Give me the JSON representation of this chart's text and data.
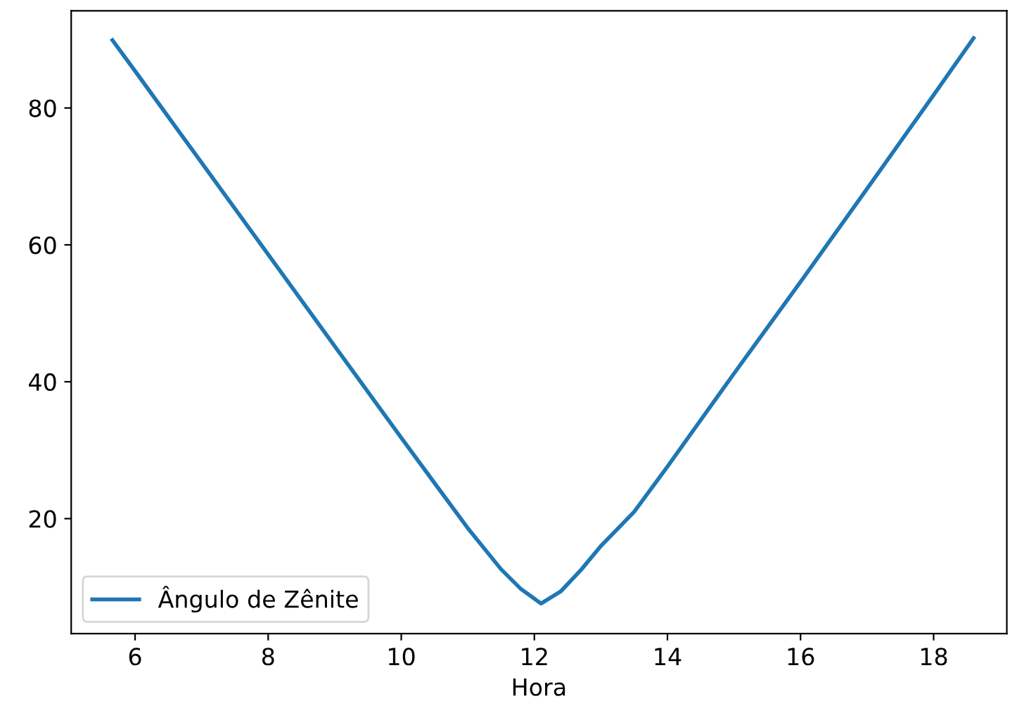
{
  "chart_data": {
    "type": "line",
    "xlabel": "Hora",
    "x": [
      5.66,
      6,
      7,
      8,
      9,
      10,
      10.5,
      11,
      11.5,
      11.8,
      12.1,
      12.4,
      12.7,
      13,
      13.5,
      14,
      15,
      16,
      17,
      18,
      18.6
    ],
    "series": [
      {
        "name": "Ângulo de Zênite",
        "color": "#1f77b4",
        "values": [
          89.9,
          85.4,
          72.0,
          58.6,
          45.2,
          31.8,
          25.2,
          18.6,
          12.6,
          9.7,
          7.6,
          9.4,
          12.5,
          16.0,
          21.0,
          27.6,
          41.2,
          54.6,
          68.2,
          81.9,
          90.2
        ]
      }
    ],
    "xlim": [
      5.04,
      19.1
    ],
    "ylim": [
      3.2,
      94.2
    ],
    "xticks": [
      6,
      8,
      10,
      12,
      14,
      16,
      18
    ],
    "yticks": [
      20,
      40,
      60,
      80
    ],
    "legend": "lower left",
    "grid": false
  }
}
